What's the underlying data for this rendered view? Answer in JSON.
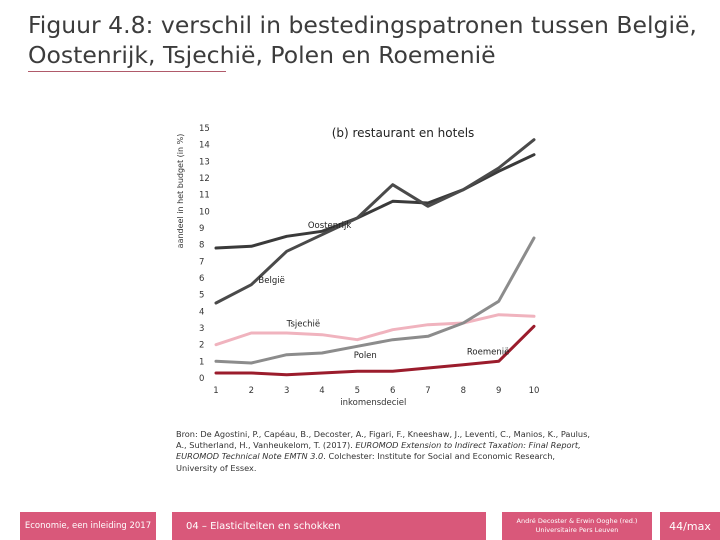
{
  "slide": {
    "title_line1": "Figuur 4.8: verschil in bestedingspatronen tussen België,",
    "title_line2": "Oostenrijk, Tsjechië, Polen en Roemenië"
  },
  "source": {
    "part1": "Bron: De Agostini, P., Capéau, B., Decoster, A., Figari, F., Kneeshaw, J., Leventi, C., Manios, K., Paulus, A., Sutherland, H., Vanheukelom, T. (2017). ",
    "italic": "EUROMOD Extension to Indirect Taxation: Final Report, EUROMOD Technical Note EMTN 3.0",
    "part2": ". Colchester: Institute for Social and Economic Research, University of Essex."
  },
  "footer": {
    "course": "Economie, een inleiding 2017",
    "chapter": "04 – Elasticiteiten en schokken",
    "authors": "André Decoster & Erwin Ooghe (red.)",
    "publisher": "Universitaire Pers Leuven",
    "page": "44/max"
  },
  "colors": {
    "accent": "#d9587a",
    "oostenrijk": "#3a3a3a",
    "belgie": "#4a4a4a",
    "tsjechie": "#f0b3be",
    "polen": "#8c8c8c",
    "roemenie": "#9b1c2c"
  },
  "chart_data": {
    "type": "line",
    "title": "(b) restaurant en hotels",
    "xlabel": "inkomensdeciel",
    "ylabel": "aandeel in het budget (in %)",
    "categories": [
      "1",
      "2",
      "3",
      "4",
      "5",
      "6",
      "7",
      "8",
      "9",
      "10"
    ],
    "yticks": [
      "0",
      "1",
      "2",
      "3",
      "4",
      "5",
      "6",
      "7",
      "8",
      "9",
      "10",
      "11",
      "12",
      "13",
      "14",
      "15"
    ],
    "ylim": [
      0,
      15
    ],
    "grid": false,
    "series": [
      {
        "name": "Oostenrijk",
        "color": "#3a3a3a",
        "values": [
          7.8,
          7.9,
          8.5,
          8.8,
          9.6,
          10.6,
          10.5,
          11.3,
          12.4,
          13.4
        ]
      },
      {
        "name": "België",
        "color": "#4a4a4a",
        "values": [
          4.5,
          5.6,
          7.6,
          8.6,
          9.6,
          11.6,
          10.3,
          11.3,
          12.6,
          14.3
        ]
      },
      {
        "name": "Tsjechië",
        "color": "#f0b3be",
        "values": [
          2.0,
          2.7,
          2.7,
          2.6,
          2.3,
          2.9,
          3.2,
          3.3,
          3.8,
          3.7
        ]
      },
      {
        "name": "Polen",
        "color": "#8c8c8c",
        "values": [
          1.0,
          0.9,
          1.4,
          1.5,
          1.9,
          2.3,
          2.5,
          3.3,
          4.6,
          8.4
        ]
      },
      {
        "name": "Roemenië",
        "color": "#9b1c2c",
        "values": [
          0.3,
          0.3,
          0.2,
          0.3,
          0.4,
          0.4,
          0.6,
          0.8,
          1.0,
          3.1
        ]
      }
    ],
    "annotations": [
      {
        "text": "Oostenrijk",
        "x": 3.6,
        "y": 9.0
      },
      {
        "text": "België",
        "x": 2.2,
        "y": 5.7
      },
      {
        "text": "Tsjechië",
        "x": 3.0,
        "y": 3.1
      },
      {
        "text": "Polen",
        "x": 4.9,
        "y": 1.2
      },
      {
        "text": "Roemenië",
        "x": 8.1,
        "y": 1.4
      }
    ]
  }
}
